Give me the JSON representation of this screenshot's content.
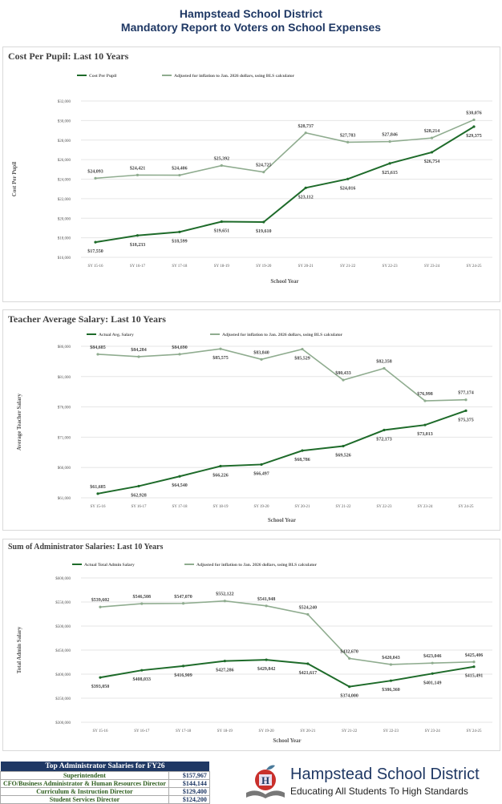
{
  "header": {
    "line1": "Hampstead School District",
    "line2": "Mandatory Report to Voters on School Expenses"
  },
  "colors": {
    "actual": "#1e6b2a",
    "adjusted": "#8fac8f",
    "header": "#1f3864"
  },
  "chart_data": [
    {
      "type": "line",
      "title": "Cost Per Pupil: Last 10 Years",
      "xlabel": "School Year",
      "ylabel": "Cost Per Pupil",
      "ylim": [
        16000,
        32000
      ],
      "ystep": 2000,
      "grid": true,
      "legend": "top",
      "categories": [
        "SY 15-16",
        "SY 16-17",
        "SY 17-18",
        "SY 18-19",
        "SY 19-20",
        "SY 20-21",
        "SY 21-22",
        "SY 22-23",
        "SY 23-24",
        "SY 24-25"
      ],
      "series": [
        {
          "name": "Cost Per Pupil",
          "values": [
            17550,
            18233,
            18599,
            19651,
            19610,
            23112,
            24016,
            25615,
            26754,
            29375
          ]
        },
        {
          "name": "Adjusted for inflation to Jan. 2026 dollars, using BLS calculator",
          "values": [
            24093,
            24421,
            24406,
            25392,
            24725,
            28737,
            27783,
            27846,
            28214,
            30076
          ]
        }
      ]
    },
    {
      "type": "line",
      "title": "Teacher Average Salary: Last 10 Years",
      "xlabel": "School Year",
      "ylabel": "Average Teacher Salary",
      "ylim": [
        61000,
        86000
      ],
      "ystep": 5000,
      "grid": true,
      "legend": "top",
      "categories": [
        "SY 15-16",
        "SY 16-17",
        "SY 17-18",
        "SY 18-19",
        "SY 19-20",
        "SY 20-21",
        "SY 21-22",
        "SY 22-23",
        "SY 23-24",
        "SY 24-25"
      ],
      "series": [
        {
          "name": "Actual Avg. Salary",
          "values": [
            61685,
            62928,
            64540,
            66226,
            66497,
            68786,
            69526,
            72173,
            73013,
            75375
          ]
        },
        {
          "name": "Adjusted for inflation to Jan. 2026 dollars, using BLS calculator",
          "values": [
            84685,
            84284,
            84690,
            85575,
            83840,
            85529,
            80433,
            82358,
            76998,
            77174
          ]
        }
      ]
    },
    {
      "type": "line",
      "title": "Sum of Administrator Salaries: Last 10 Years",
      "xlabel": "School Year",
      "ylabel": "Total Admin Salary",
      "ylim": [
        300000,
        600000
      ],
      "ystep": 50000,
      "grid": true,
      "legend": "top",
      "categories": [
        "SY 15-16",
        "SY 16-17",
        "SY 17-18",
        "SY 18-19",
        "SY 19-20",
        "SY 20-21",
        "SY 21-22",
        "SY 22-23",
        "SY 23-24",
        "SY 24-25"
      ],
      "series": [
        {
          "name": "Actual Total Admin Salary",
          "values": [
            393050,
            408033,
            416909,
            427286,
            429842,
            421617,
            374000,
            386360,
            401149,
            415491
          ]
        },
        {
          "name": "Adjusted for inflation to Jan. 2026 dollars, using BLS calculator",
          "values": [
            539602,
            546508,
            547070,
            552122,
            541948,
            524240,
            432670,
            420043,
            423046,
            425406
          ]
        }
      ]
    }
  ],
  "salary_table": {
    "title": "Top Administrator Salaries for FY26",
    "rows": [
      {
        "role": "Superintendent",
        "salary": "$157,967"
      },
      {
        "role": "CFO/Business Administrator & Human Resources Director",
        "salary": "$144,144"
      },
      {
        "role": "Curriculum & Instruction Director",
        "salary": "$129,400"
      },
      {
        "role": "Student Services Director",
        "salary": "$124,200"
      }
    ]
  },
  "logo": {
    "name": "Hampstead School District",
    "tagline": "Educating All Students To High Standards",
    "letter": "H"
  }
}
